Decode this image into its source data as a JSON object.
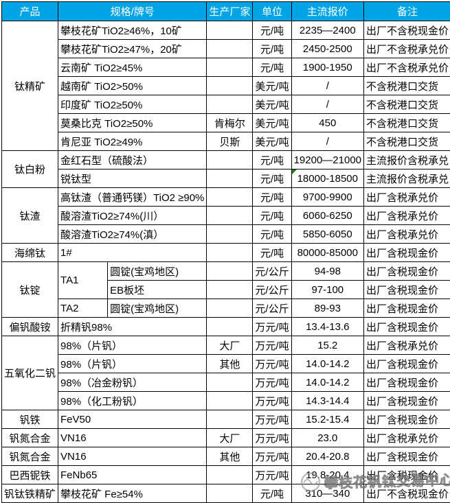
{
  "colors": {
    "header_bg": "#00A4E4",
    "header_text": "#FFFFFF",
    "border": "#000000",
    "flag_green": "#1E7E1E",
    "watermark_gray": "#8F8F8F"
  },
  "table": {
    "columns": [
      {
        "key": "product",
        "label": "产品",
        "colspan": 1
      },
      {
        "key": "spec",
        "label": "规格/牌号",
        "colspan": 2
      },
      {
        "key": "maker",
        "label": "生产厂家",
        "colspan": 1
      },
      {
        "key": "unit",
        "label": "单位",
        "colspan": 1
      },
      {
        "key": "price",
        "label": "主流报价",
        "colspan": 1
      },
      {
        "key": "note",
        "label": "备注",
        "colspan": 1
      }
    ],
    "rows": [
      {
        "cells": [
          {
            "n": "product",
            "t": "钛精矿",
            "rs": 7
          },
          {
            "n": "spec",
            "t": "攀枝花矿TiO2≥46%，10矿",
            "cs": 2
          },
          {
            "n": "maker",
            "t": ""
          },
          {
            "n": "unit",
            "t": "元/吨"
          },
          {
            "n": "price",
            "t": "2235—2400"
          },
          {
            "n": "note",
            "t": "出厂不含税现金价"
          }
        ]
      },
      {
        "cells": [
          {
            "n": "spec",
            "t": "攀枝花矿TiO2≥47%，20矿",
            "cs": 2
          },
          {
            "n": "maker",
            "t": ""
          },
          {
            "n": "unit",
            "t": "元/吨"
          },
          {
            "n": "price",
            "t": "2450-2500"
          },
          {
            "n": "note",
            "t": "出厂不含税承兑价"
          }
        ]
      },
      {
        "cells": [
          {
            "n": "spec",
            "t": "云南矿 TiO2≥45%",
            "cs": 2
          },
          {
            "n": "maker",
            "t": ""
          },
          {
            "n": "unit",
            "t": "元/吨"
          },
          {
            "n": "price",
            "t": "1900-1950"
          },
          {
            "n": "note",
            "t": "出厂不含税承兑价"
          }
        ]
      },
      {
        "cells": [
          {
            "n": "spec",
            "t": "越南矿 TiO2>50%",
            "cs": 2
          },
          {
            "n": "maker",
            "t": ""
          },
          {
            "n": "unit",
            "t": "美元/吨"
          },
          {
            "n": "price",
            "t": "/"
          },
          {
            "n": "note",
            "t": "不含税港口交货"
          }
        ]
      },
      {
        "cells": [
          {
            "n": "spec",
            "t": "印度矿 TiO2≥50%",
            "cs": 2
          },
          {
            "n": "maker",
            "t": ""
          },
          {
            "n": "unit",
            "t": "美元/吨"
          },
          {
            "n": "price",
            "t": "/"
          },
          {
            "n": "note",
            "t": "不含税港口交货"
          }
        ]
      },
      {
        "cells": [
          {
            "n": "spec",
            "t": "莫桑比克 TiO2≥50%",
            "cs": 2
          },
          {
            "n": "maker",
            "t": "肯梅尔"
          },
          {
            "n": "unit",
            "t": "美元/吨"
          },
          {
            "n": "price",
            "t": "450"
          },
          {
            "n": "note",
            "t": "不含税港口交货"
          }
        ]
      },
      {
        "cells": [
          {
            "n": "spec",
            "t": "肯尼亚 TiO2≥49%",
            "cs": 2
          },
          {
            "n": "maker",
            "t": "贝斯"
          },
          {
            "n": "unit",
            "t": "美元/吨"
          },
          {
            "n": "price",
            "t": "/"
          },
          {
            "n": "note",
            "t": "不含税港口交货"
          }
        ]
      },
      {
        "cells": [
          {
            "n": "product",
            "t": "钛白粉",
            "rs": 2
          },
          {
            "n": "spec",
            "t": "金红石型（硫酸法）",
            "cs": 2
          },
          {
            "n": "maker",
            "t": ""
          },
          {
            "n": "unit",
            "t": "元/吨"
          },
          {
            "n": "price",
            "t": "19200—21000"
          },
          {
            "n": "note",
            "t": "主流报价含税承兑"
          }
        ]
      },
      {
        "cells": [
          {
            "n": "spec",
            "t": "锐钛型",
            "cs": 2
          },
          {
            "n": "maker",
            "t": ""
          },
          {
            "n": "unit",
            "t": "元/吨"
          },
          {
            "n": "price",
            "t": "18000-18500",
            "flag": true
          },
          {
            "n": "note",
            "t": "主流报价含税承兑"
          }
        ]
      },
      {
        "cells": [
          {
            "n": "product",
            "t": "钛渣",
            "rs": 3
          },
          {
            "n": "spec",
            "t": "高钛渣（普通钙镁）TiO2 ≥90%",
            "cs": 2,
            "small": true
          },
          {
            "n": "maker",
            "t": ""
          },
          {
            "n": "unit",
            "t": "元/吨"
          },
          {
            "n": "price",
            "t": "9700-9900"
          },
          {
            "n": "note",
            "t": "出厂含税承兑价"
          }
        ]
      },
      {
        "cells": [
          {
            "n": "spec",
            "t": "酸溶渣TiO2≥74%(川）",
            "cs": 2
          },
          {
            "n": "maker",
            "t": ""
          },
          {
            "n": "unit",
            "t": "元/吨"
          },
          {
            "n": "price",
            "t": "6060-6250"
          },
          {
            "n": "note",
            "t": "出厂含税承兑价"
          }
        ]
      },
      {
        "cells": [
          {
            "n": "spec",
            "t": "酸溶渣TiO2≥74%(滇）",
            "cs": 2
          },
          {
            "n": "maker",
            "t": ""
          },
          {
            "n": "unit",
            "t": "元/吨"
          },
          {
            "n": "price",
            "t": "5850-6050"
          },
          {
            "n": "note",
            "t": "出厂含税承兑价"
          }
        ]
      },
      {
        "cells": [
          {
            "n": "product",
            "t": "海绵钛"
          },
          {
            "n": "spec",
            "t": "1#",
            "cs": 2
          },
          {
            "n": "maker",
            "t": ""
          },
          {
            "n": "unit",
            "t": "元/吨"
          },
          {
            "n": "price",
            "t": "80000-85000"
          },
          {
            "n": "note",
            "t": "出厂含税现金价"
          }
        ]
      },
      {
        "cells": [
          {
            "n": "product",
            "t": "钛锭",
            "rs": 3
          },
          {
            "n": "spec",
            "t": "TA1",
            "rs": 2
          },
          {
            "n": "spec2",
            "t": "圆锭(宝鸡地区)"
          },
          {
            "n": "maker",
            "t": ""
          },
          {
            "n": "unit",
            "t": "元/公斤"
          },
          {
            "n": "price",
            "t": "94-98"
          },
          {
            "n": "note",
            "t": "出厂含税现金价"
          }
        ]
      },
      {
        "cells": [
          {
            "n": "spec2",
            "t": "EB板坯"
          },
          {
            "n": "maker",
            "t": ""
          },
          {
            "n": "unit",
            "t": "元/公斤"
          },
          {
            "n": "price",
            "t": "97-100"
          },
          {
            "n": "note",
            "t": "出厂含税现金价"
          }
        ]
      },
      {
        "cells": [
          {
            "n": "spec",
            "t": "TA2"
          },
          {
            "n": "spec2",
            "t": "圆锭(宝鸡地区)"
          },
          {
            "n": "maker",
            "t": ""
          },
          {
            "n": "unit",
            "t": "元/公斤"
          },
          {
            "n": "price",
            "t": "89-93"
          },
          {
            "n": "note",
            "t": "出厂含税现金价"
          }
        ]
      },
      {
        "cells": [
          {
            "n": "product",
            "t": "偏钒酸铵"
          },
          {
            "n": "spec",
            "t": "折精钒98%",
            "cs": 2
          },
          {
            "n": "maker",
            "t": ""
          },
          {
            "n": "unit",
            "t": "万元/吨"
          },
          {
            "n": "price",
            "t": "13.4-13.6"
          },
          {
            "n": "note",
            "t": "出厂含税现金价"
          }
        ]
      },
      {
        "cells": [
          {
            "n": "product",
            "t": "五氧化二钒",
            "rs": 4
          },
          {
            "n": "spec",
            "t": "98%（片钒）",
            "cs": 2
          },
          {
            "n": "maker",
            "t": "大厂"
          },
          {
            "n": "unit",
            "t": "万元/吨"
          },
          {
            "n": "price",
            "t": "15.2"
          },
          {
            "n": "note",
            "t": "出厂含税承兑价"
          }
        ]
      },
      {
        "cells": [
          {
            "n": "spec",
            "t": "98%（片钒）",
            "cs": 2
          },
          {
            "n": "maker",
            "t": "其他"
          },
          {
            "n": "unit",
            "t": "万元/吨"
          },
          {
            "n": "price",
            "t": "14.0-14.2"
          },
          {
            "n": "note",
            "t": "出厂含税现金价"
          }
        ]
      },
      {
        "cells": [
          {
            "n": "spec",
            "t": "98%（冶金粉钒）",
            "cs": 2
          },
          {
            "n": "maker",
            "t": ""
          },
          {
            "n": "unit",
            "t": "万元/吨"
          },
          {
            "n": "price",
            "t": "14.0-14.2"
          },
          {
            "n": "note",
            "t": "出厂含税现金价"
          }
        ]
      },
      {
        "cells": [
          {
            "n": "spec",
            "t": "98%（化工粉钒）",
            "cs": 2
          },
          {
            "n": "maker",
            "t": ""
          },
          {
            "n": "unit",
            "t": "万元/吨"
          },
          {
            "n": "price",
            "t": "14.3-14.4"
          },
          {
            "n": "note",
            "t": "出厂含税现金价"
          }
        ]
      },
      {
        "cells": [
          {
            "n": "product",
            "t": "钒铁"
          },
          {
            "n": "spec",
            "t": "FeV50",
            "cs": 2
          },
          {
            "n": "maker",
            "t": ""
          },
          {
            "n": "unit",
            "t": "万元/吨"
          },
          {
            "n": "price",
            "t": "15.2-15.4"
          },
          {
            "n": "note",
            "t": "出厂含税现金价"
          }
        ]
      },
      {
        "cells": [
          {
            "n": "product",
            "t": "钒氮合金"
          },
          {
            "n": "spec",
            "t": "VN16",
            "cs": 2
          },
          {
            "n": "maker",
            "t": "大厂"
          },
          {
            "n": "unit",
            "t": "万元/吨"
          },
          {
            "n": "price",
            "t": "23.0"
          },
          {
            "n": "note",
            "t": "出厂含税承兑价"
          }
        ]
      },
      {
        "cells": [
          {
            "n": "product",
            "t": "钒氮合金"
          },
          {
            "n": "spec",
            "t": "VN16",
            "cs": 2
          },
          {
            "n": "maker",
            "t": "其他"
          },
          {
            "n": "unit",
            "t": "万元/吨"
          },
          {
            "n": "price",
            "t": "20.4-20.8"
          },
          {
            "n": "note",
            "t": "出厂含税现金价"
          }
        ]
      },
      {
        "cells": [
          {
            "n": "product",
            "t": "巴西铌铁"
          },
          {
            "n": "spec",
            "t": "FeNb65",
            "cs": 2
          },
          {
            "n": "maker",
            "t": ""
          },
          {
            "n": "unit",
            "t": "万元/吨"
          },
          {
            "n": "price",
            "t": "19.8-20.4"
          },
          {
            "n": "note",
            "t": "出厂含税现金价"
          }
        ]
      },
      {
        "cells": [
          {
            "n": "product",
            "t": "钒钛铁精矿"
          },
          {
            "n": "spec",
            "t": "攀枝花矿 Fe≥54%",
            "cs": 2
          },
          {
            "n": "maker",
            "t": ""
          },
          {
            "n": "unit",
            "t": "元/吨"
          },
          {
            "n": "price",
            "t": "310—340"
          },
          {
            "n": "note",
            "t": "出厂不含税现金价"
          }
        ]
      }
    ]
  },
  "watermark": {
    "text": "攀枝花钒钛交易中心"
  }
}
